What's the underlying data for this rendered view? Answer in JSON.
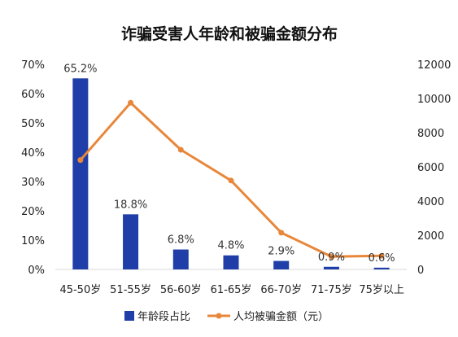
{
  "chart_data": {
    "type": "bar+line",
    "title": "诈骗受害人年龄和被骗金额分布",
    "categories": [
      "45-50岁",
      "51-55岁",
      "56-60岁",
      "61-65岁",
      "66-70岁",
      "71-75岁",
      "75岁以上"
    ],
    "series": [
      {
        "name": "年龄段占比",
        "type": "bar",
        "axis": "left",
        "values": [
          65.2,
          18.8,
          6.8,
          4.8,
          2.9,
          0.9,
          0.6
        ],
        "data_labels": [
          "65.2%",
          "18.8%",
          "6.8%",
          "4.8%",
          "2.9%",
          "0.9%",
          "0.6%"
        ],
        "color": "#1F3EA8"
      },
      {
        "name": "人均被骗金额（元）",
        "type": "line",
        "axis": "right",
        "values": [
          6400,
          9750,
          7000,
          5200,
          2150,
          750,
          800
        ],
        "color": "#E8873A"
      }
    ],
    "y_left": {
      "ylim": [
        0,
        70
      ],
      "ticks": [
        0,
        10,
        20,
        30,
        40,
        50,
        60,
        70
      ],
      "tick_labels": [
        "0%",
        "10%",
        "20%",
        "30%",
        "40%",
        "50%",
        "60%",
        "70%"
      ]
    },
    "y_right": {
      "ylim": [
        0,
        12000
      ],
      "ticks": [
        0,
        2000,
        4000,
        6000,
        8000,
        10000,
        12000
      ],
      "tick_labels": [
        "0",
        "2000",
        "4000",
        "6000",
        "8000",
        "10000",
        "12000"
      ]
    },
    "grid": false,
    "legend_position": "bottom"
  }
}
